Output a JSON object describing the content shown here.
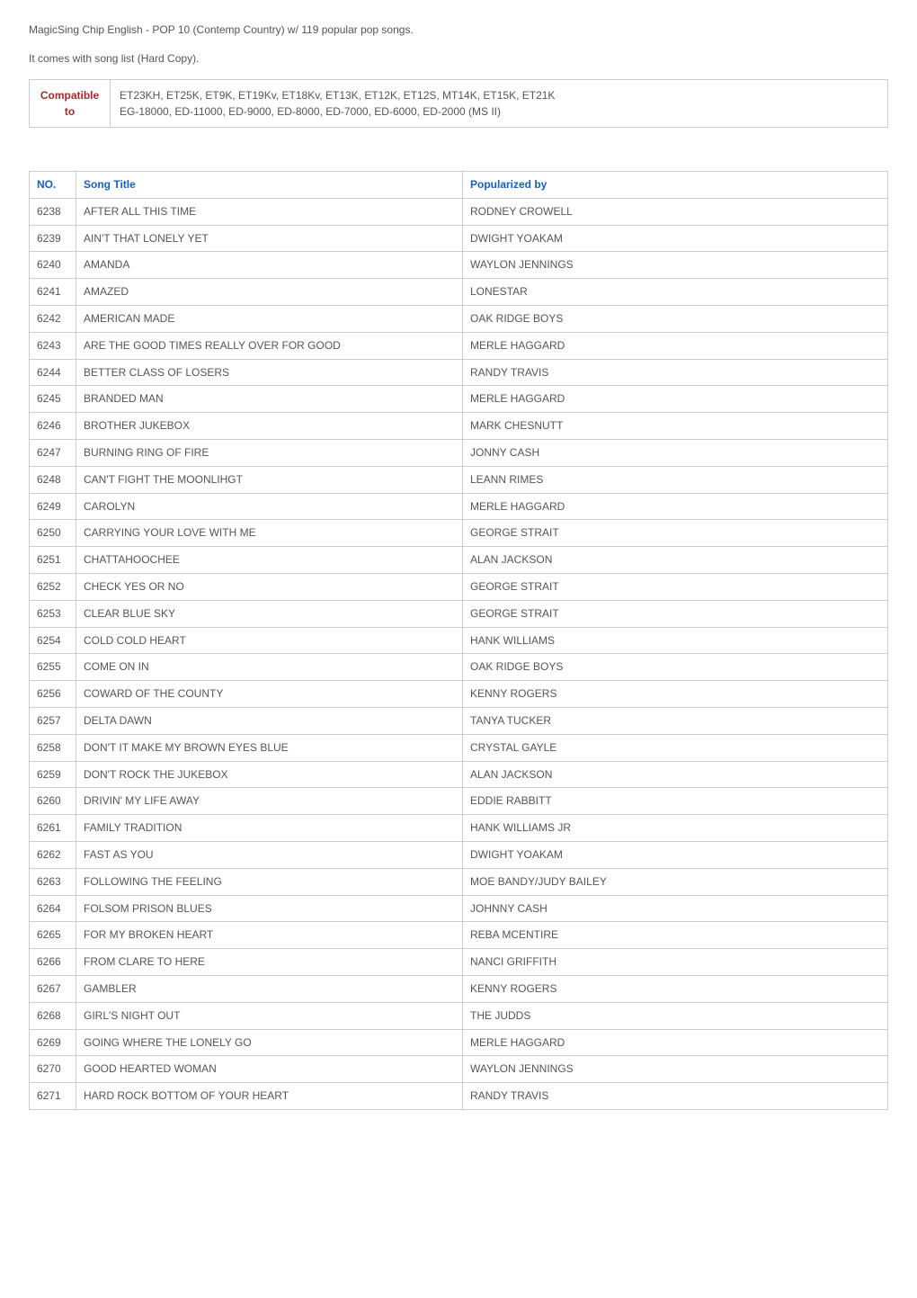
{
  "intro": {
    "line1": "MagicSing Chip English - POP 10 (Contemp Country) w/ 119 popular pop songs.",
    "line2": "It comes with song list (Hard Copy)."
  },
  "compat": {
    "label_line1": "Compatible",
    "label_line2": "to",
    "value_line1": "ET23KH, ET25K, ET9K, ET19Kv, ET18Kv, ET13K, ET12K, ET12S, MT14K, ET15K, ET21K",
    "value_line2": "EG-18000, ED-11000, ED-9000, ED-8000, ED-7000, ED-6000, ED-2000 (MS II)"
  },
  "songs": {
    "headers": {
      "no": "NO.",
      "title": "Song Title",
      "by": "Popularized by"
    },
    "rows": [
      {
        "no": "6238",
        "title": "AFTER ALL THIS TIME",
        "by": "RODNEY CROWELL"
      },
      {
        "no": "6239",
        "title": "AIN'T THAT LONELY YET",
        "by": "DWIGHT YOAKAM"
      },
      {
        "no": "6240",
        "title": "AMANDA",
        "by": "WAYLON JENNINGS"
      },
      {
        "no": "6241",
        "title": "AMAZED",
        "by": "LONESTAR"
      },
      {
        "no": "6242",
        "title": "AMERICAN MADE",
        "by": "OAK RIDGE BOYS"
      },
      {
        "no": "6243",
        "title": "ARE THE GOOD TIMES REALLY OVER FOR GOOD",
        "by": "MERLE HAGGARD"
      },
      {
        "no": "6244",
        "title": "BETTER CLASS OF LOSERS",
        "by": "RANDY TRAVIS"
      },
      {
        "no": "6245",
        "title": "BRANDED MAN",
        "by": "MERLE HAGGARD"
      },
      {
        "no": "6246",
        "title": "BROTHER JUKEBOX",
        "by": "MARK CHESNUTT"
      },
      {
        "no": "6247",
        "title": "BURNING RING OF FIRE",
        "by": "JONNY CASH"
      },
      {
        "no": "6248",
        "title": "CAN'T FIGHT THE MOONLIHGT",
        "by": "LEANN RIMES"
      },
      {
        "no": "6249",
        "title": "CAROLYN",
        "by": "MERLE HAGGARD"
      },
      {
        "no": "6250",
        "title": "CARRYING YOUR LOVE WITH ME",
        "by": "GEORGE STRAIT"
      },
      {
        "no": "6251",
        "title": "CHATTAHOOCHEE",
        "by": "ALAN JACKSON"
      },
      {
        "no": "6252",
        "title": "CHECK YES OR NO",
        "by": "GEORGE STRAIT"
      },
      {
        "no": "6253",
        "title": "CLEAR BLUE SKY",
        "by": "GEORGE STRAIT"
      },
      {
        "no": "6254",
        "title": "COLD COLD HEART",
        "by": "HANK WILLIAMS"
      },
      {
        "no": "6255",
        "title": "COME ON IN",
        "by": "OAK RIDGE BOYS"
      },
      {
        "no": "6256",
        "title": "COWARD OF THE COUNTY",
        "by": "KENNY ROGERS"
      },
      {
        "no": "6257",
        "title": "DELTA DAWN",
        "by": "TANYA TUCKER"
      },
      {
        "no": "6258",
        "title": "DON'T IT MAKE MY BROWN EYES BLUE",
        "by": "CRYSTAL GAYLE"
      },
      {
        "no": "6259",
        "title": "DON'T ROCK THE JUKEBOX",
        "by": "ALAN JACKSON"
      },
      {
        "no": "6260",
        "title": "DRIVIN' MY LIFE AWAY",
        "by": "EDDIE RABBITT"
      },
      {
        "no": "6261",
        "title": "FAMILY TRADITION",
        "by": "HANK WILLIAMS JR"
      },
      {
        "no": "6262",
        "title": "FAST AS YOU",
        "by": "DWIGHT YOAKAM"
      },
      {
        "no": "6263",
        "title": "FOLLOWING THE FEELING",
        "by": "MOE BANDY/JUDY BAILEY"
      },
      {
        "no": "6264",
        "title": "FOLSOM PRISON BLUES",
        "by": "JOHNNY CASH"
      },
      {
        "no": "6265",
        "title": "FOR MY BROKEN HEART",
        "by": "REBA MCENTIRE"
      },
      {
        "no": "6266",
        "title": "FROM CLARE TO HERE",
        "by": "NANCI GRIFFITH"
      },
      {
        "no": "6267",
        "title": "GAMBLER",
        "by": "KENNY ROGERS"
      },
      {
        "no": "6268",
        "title": "GIRL'S NIGHT OUT",
        "by": "THE JUDDS"
      },
      {
        "no": "6269",
        "title": "GOING WHERE THE LONELY GO",
        "by": "MERLE HAGGARD"
      },
      {
        "no": "6270",
        "title": "GOOD HEARTED WOMAN",
        "by": "WAYLON JENNINGS"
      },
      {
        "no": "6271",
        "title": "HARD ROCK BOTTOM OF YOUR HEART",
        "by": "RANDY TRAVIS"
      }
    ]
  },
  "colors": {
    "header_text": "#1560bd",
    "compat_label": "#a52a2a",
    "body_text": "#555555",
    "border": "#cccccc",
    "background": "#ffffff"
  }
}
